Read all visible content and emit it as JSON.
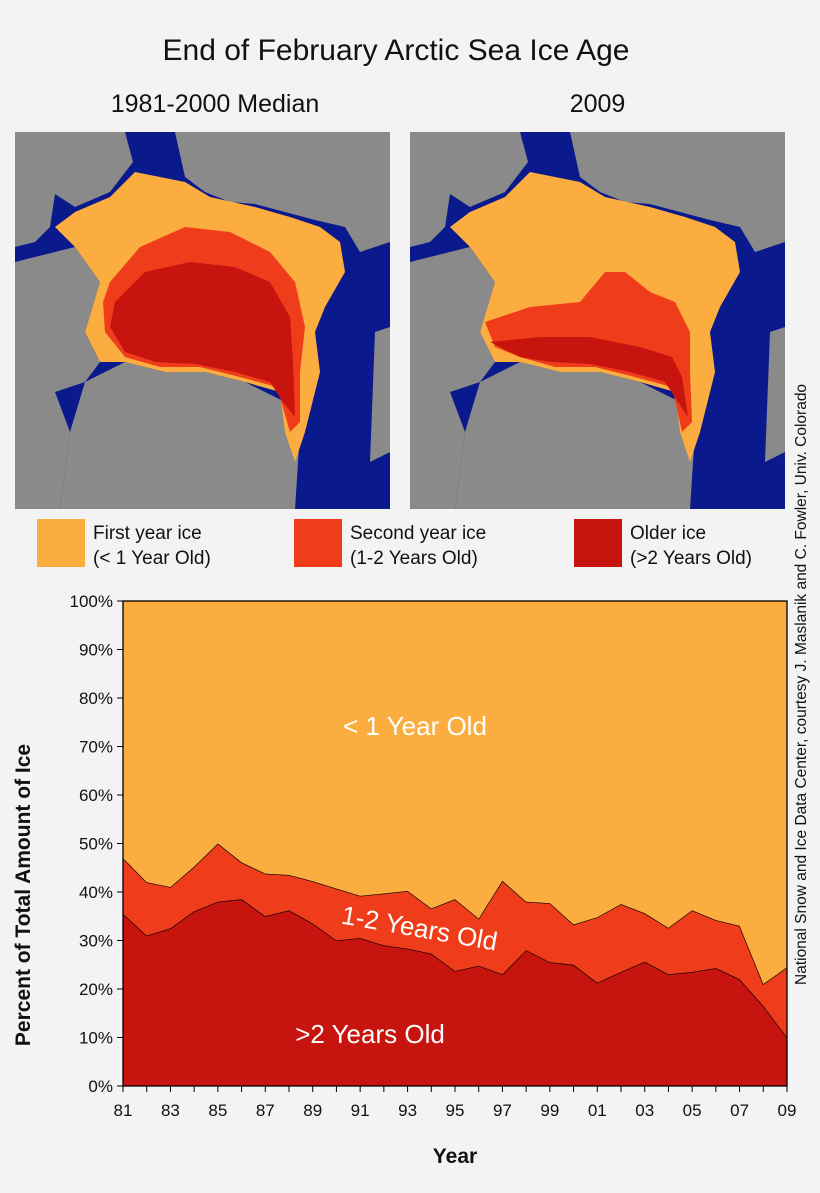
{
  "title": "End of February Arctic Sea Ice Age",
  "maps": [
    {
      "label": "1981-2000 Median"
    },
    {
      "label": "2009"
    }
  ],
  "legend": [
    {
      "line1": "First year ice",
      "line2": "(< 1 Year Old)",
      "color": "#fbad3f"
    },
    {
      "line1": "Second year ice",
      "line2": "(1-2 Years Old)",
      "color": "#ef3d1b"
    },
    {
      "line1": "Older ice",
      "line2": "(>2 Years Old)",
      "color": "#c8140e"
    }
  ],
  "credit": "National Snow and Ice Data Center, courtesy J. Maslanik and C. Fowler, Univ. Colorado",
  "colors": {
    "first_year": "#fbad3f",
    "second_year": "#ef3d1b",
    "older": "#c8140e",
    "ocean": "#0a1a8c",
    "land": "#8a8a8a"
  },
  "chart_data": {
    "type": "area",
    "stacked": true,
    "xlabel": "Year",
    "ylabel": "Percent of Total Amount of Ice",
    "ylim": [
      0,
      100
    ],
    "yticks": [
      "0%",
      "10%",
      "20%",
      "30%",
      "40%",
      "50%",
      "60%",
      "70%",
      "80%",
      "90%",
      "100%"
    ],
    "x": [
      1981,
      1982,
      1983,
      1984,
      1985,
      1986,
      1987,
      1988,
      1989,
      1990,
      1991,
      1992,
      1993,
      1994,
      1995,
      1996,
      1997,
      1998,
      1999,
      2000,
      2001,
      2002,
      2003,
      2004,
      2005,
      2006,
      2007,
      2008,
      2009
    ],
    "xtick_labels": [
      "81",
      "83",
      "85",
      "87",
      "89",
      "91",
      "93",
      "95",
      "97",
      "99",
      "01",
      "03",
      "05",
      "07",
      "09"
    ],
    "series": [
      {
        "name": ">2 Years Old",
        "values": [
          35.5,
          31,
          32.5,
          36,
          38,
          38.5,
          35,
          36.2,
          33.5,
          30,
          30.5,
          29,
          28.3,
          27.3,
          23.7,
          24.8,
          23,
          28,
          25.5,
          25,
          21.3,
          23.5,
          25.6,
          23,
          23.5,
          24.3,
          22,
          16.5,
          10
        ]
      },
      {
        "name": "1-2 Years Old",
        "values": [
          11.5,
          11,
          8.5,
          9.2,
          12,
          7.6,
          8.8,
          7.3,
          8.7,
          10.7,
          8.7,
          10.7,
          11.9,
          9.3,
          14.8,
          9.7,
          19.3,
          10,
          12.2,
          8.3,
          13.5,
          14,
          10,
          9.6,
          12.7,
          9.9,
          11,
          4.5,
          14.5
        ]
      },
      {
        "name": "< 1 Year Old",
        "values": [
          53,
          58,
          59,
          54.8,
          50,
          53.9,
          56.2,
          56.5,
          57.8,
          59.3,
          60.8,
          60.3,
          59.8,
          63.4,
          61.5,
          65.5,
          57.7,
          62,
          62.3,
          66.7,
          65.2,
          62.5,
          64.4,
          67.4,
          63.8,
          65.8,
          67,
          79,
          75.5
        ]
      }
    ]
  }
}
